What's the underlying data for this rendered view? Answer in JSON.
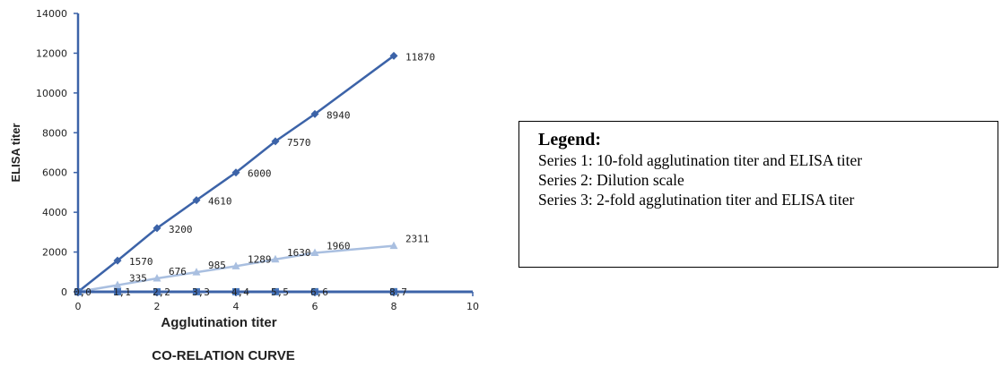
{
  "chart_data": {
    "type": "line",
    "title": "CO-RELATION CURVE",
    "xlabel": "Agglutination titer",
    "ylabel": "ELISA titer",
    "xlim": [
      0,
      10
    ],
    "ylim": [
      0,
      14000
    ],
    "xticks": [
      0,
      2,
      4,
      6,
      8,
      10
    ],
    "yticks": [
      0,
      2000,
      4000,
      6000,
      8000,
      10000,
      12000,
      14000
    ],
    "grid": false,
    "series": [
      {
        "name": "Series 1",
        "color": "#3c63a8",
        "marker": "diamond",
        "x": [
          0,
          1,
          2,
          3,
          4,
          5,
          6,
          8
        ],
        "y": [
          0,
          1570,
          3200,
          4610,
          6000,
          7570,
          8940,
          11870
        ],
        "labels": [
          "",
          "1570",
          "3200",
          "4610",
          "6000",
          "7570",
          "8940",
          "11870"
        ]
      },
      {
        "name": "Series 2",
        "color": "#4a7bc0",
        "marker": "square",
        "x": [
          0,
          1,
          2,
          3,
          4,
          5,
          6,
          8
        ],
        "y": [
          0,
          1,
          2,
          3,
          4,
          5,
          6,
          7
        ],
        "labels": [
          "0,0",
          "1,1",
          "2,2",
          "3,3",
          "4,4",
          "5,5",
          "6,6",
          "8,7"
        ]
      },
      {
        "name": "Series 3",
        "color": "#a9bfe0",
        "marker": "triangle",
        "x": [
          0,
          1,
          2,
          3,
          4,
          5,
          6,
          8
        ],
        "y": [
          0,
          335,
          676,
          985,
          1289,
          1630,
          1960,
          2311
        ],
        "labels": [
          "",
          "335",
          "676",
          "985",
          "1289",
          "1630",
          "1960",
          "2311"
        ]
      }
    ]
  },
  "legend": {
    "title": "Legend:",
    "lines": [
      "Series 1: 10-fold agglutination titer and ELISA titer",
      "Series 2:  Dilution scale",
      "Series 3: 2-fold agglutination titer and ELISA titer"
    ]
  }
}
